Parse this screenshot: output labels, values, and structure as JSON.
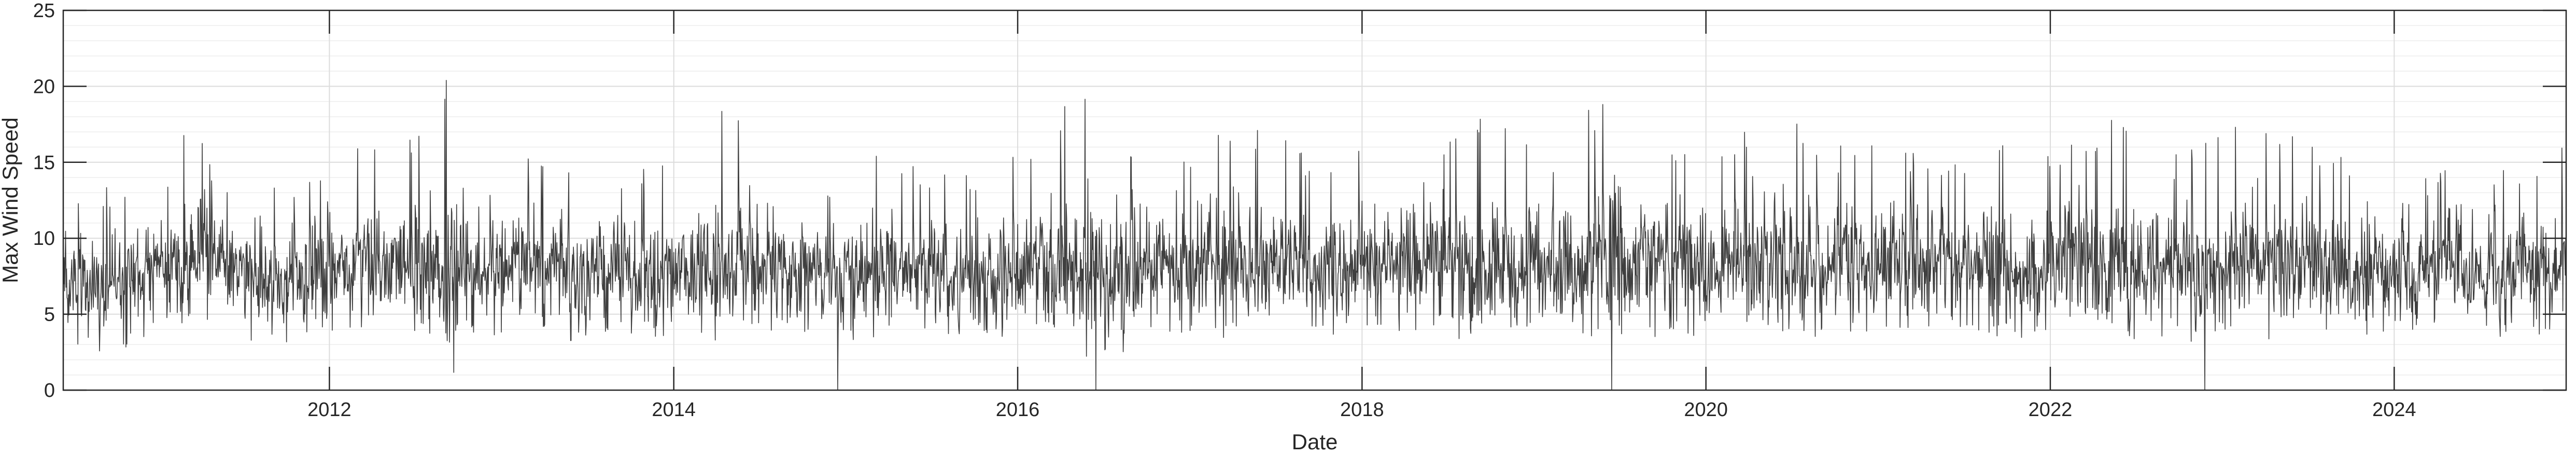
{
  "chart_data": {
    "type": "line",
    "title": "",
    "xlabel": "Date",
    "ylabel": "Max Wind Speed",
    "xlim": [
      "2010-06-15",
      "2024-12-31"
    ],
    "ylim": [
      0,
      25
    ],
    "x_ticks": [
      {
        "date": "2012-01-01",
        "label": "2012"
      },
      {
        "date": "2014-01-01",
        "label": "2014"
      },
      {
        "date": "2016-01-01",
        "label": "2016"
      },
      {
        "date": "2018-01-01",
        "label": "2018"
      },
      {
        "date": "2020-01-01",
        "label": "2020"
      },
      {
        "date": "2022-01-01",
        "label": "2022"
      },
      {
        "date": "2024-01-01",
        "label": "2024"
      }
    ],
    "y_ticks": [
      0,
      5,
      10,
      15,
      20,
      25
    ],
    "grid": true,
    "minor_grid": true,
    "legend": "none",
    "line_color": "#3f3f3f",
    "series": [
      {
        "x": [
          "2010-06-15",
          "2010-09-01",
          "2010-12-01",
          "2011-03-01",
          "2011-04-01",
          "2011-06-01",
          "2011-09-01",
          "2011-12-01",
          "2012-03-01",
          "2012-06-01",
          "2012-09-10",
          "2012-12-01",
          "2013-03-01",
          "2013-06-01",
          "2013-09-01",
          "2013-12-01",
          "2014-03-01",
          "2014-05-10",
          "2014-09-01",
          "2014-12-01",
          "2015-03-01",
          "2015-06-01",
          "2015-09-01",
          "2015-12-01",
          "2016-03-01",
          "2016-06-01",
          "2016-09-01",
          "2016-12-01",
          "2017-03-01",
          "2017-06-01",
          "2017-09-01",
          "2017-12-01",
          "2018-03-01",
          "2018-06-01",
          "2018-09-01",
          "2018-12-01",
          "2019-03-01",
          "2019-06-01",
          "2019-09-01",
          "2019-12-01",
          "2020-03-01",
          "2020-06-01",
          "2020-09-01",
          "2020-12-01",
          "2021-03-01",
          "2021-06-01",
          "2021-09-01",
          "2021-12-01",
          "2022-03-01",
          "2022-06-01",
          "2022-09-01",
          "2022-12-01",
          "2023-03-01",
          "2023-06-01",
          "2023-09-01",
          "2023-12-01",
          "2024-03-01",
          "2024-06-01",
          "2024-09-01",
          "2024-12-31"
        ],
        "max": [
          14.5,
          13.5,
          14.0,
          17.5,
          17.0,
          13.0,
          13.5,
          14.5,
          16.5,
          15.5,
          21.5,
          14.0,
          15.5,
          16.0,
          14.0,
          15.5,
          17.5,
          19.0,
          16.0,
          16.5,
          16.5,
          15.0,
          14.5,
          15.0,
          18.0,
          20.0,
          17.0,
          14.5,
          17.5,
          17.5,
          16.0,
          15.5,
          18.0,
          17.0,
          18.5,
          17.0,
          17.5,
          19.5,
          16.5,
          17.0,
          16.5,
          19.0,
          16.0,
          16.5,
          16.0,
          16.0,
          16.0,
          16.5,
          17.0,
          18.0,
          15.5,
          17.0,
          19.5,
          17.5,
          15.5,
          16.5,
          15.0,
          14.5,
          15.0,
          16.5
        ],
        "min": [
          3.0,
          2.5,
          3.0,
          4.5,
          5.0,
          3.5,
          3.0,
          3.5,
          4.0,
          4.0,
          3.0,
          3.5,
          4.0,
          3.5,
          3.5,
          3.0,
          4.0,
          4.0,
          3.5,
          3.5,
          3.0,
          4.0,
          3.5,
          3.5,
          4.0,
          3.0,
          3.5,
          3.5,
          4.0,
          4.0,
          3.5,
          3.5,
          4.0,
          4.0,
          3.5,
          4.0,
          4.0,
          3.5,
          3.0,
          3.5,
          4.0,
          4.0,
          3.5,
          3.5,
          4.0,
          4.0,
          3.5,
          3.5,
          4.0,
          3.5,
          3.5,
          3.5,
          4.0,
          4.0,
          3.5,
          3.5,
          3.5,
          3.5,
          3.5,
          3.5
        ],
        "typical": [
          7.5,
          7.0,
          7.5,
          9.0,
          9.5,
          8.0,
          7.5,
          8.0,
          8.5,
          8.5,
          8.0,
          8.0,
          8.5,
          8.0,
          8.0,
          7.5,
          8.5,
          8.5,
          8.0,
          8.0,
          8.0,
          8.0,
          7.5,
          7.5,
          8.5,
          8.0,
          8.0,
          8.0,
          8.5,
          8.5,
          8.0,
          8.0,
          8.5,
          8.5,
          8.0,
          8.5,
          8.5,
          8.5,
          8.0,
          8.0,
          8.5,
          8.5,
          8.0,
          8.0,
          8.5,
          8.5,
          8.0,
          8.0,
          8.5,
          8.5,
          8.0,
          8.0,
          8.5,
          8.5,
          8.0,
          8.0,
          8.0,
          8.0,
          8.0,
          8.5
        ]
      }
    ],
    "annotations": [
      {
        "date": "2014-12-15",
        "value": 0
      },
      {
        "date": "2016-06-15",
        "value": 0
      },
      {
        "date": "2019-06-15",
        "value": 0
      },
      {
        "date": "2022-11-25",
        "value": 0
      }
    ]
  }
}
